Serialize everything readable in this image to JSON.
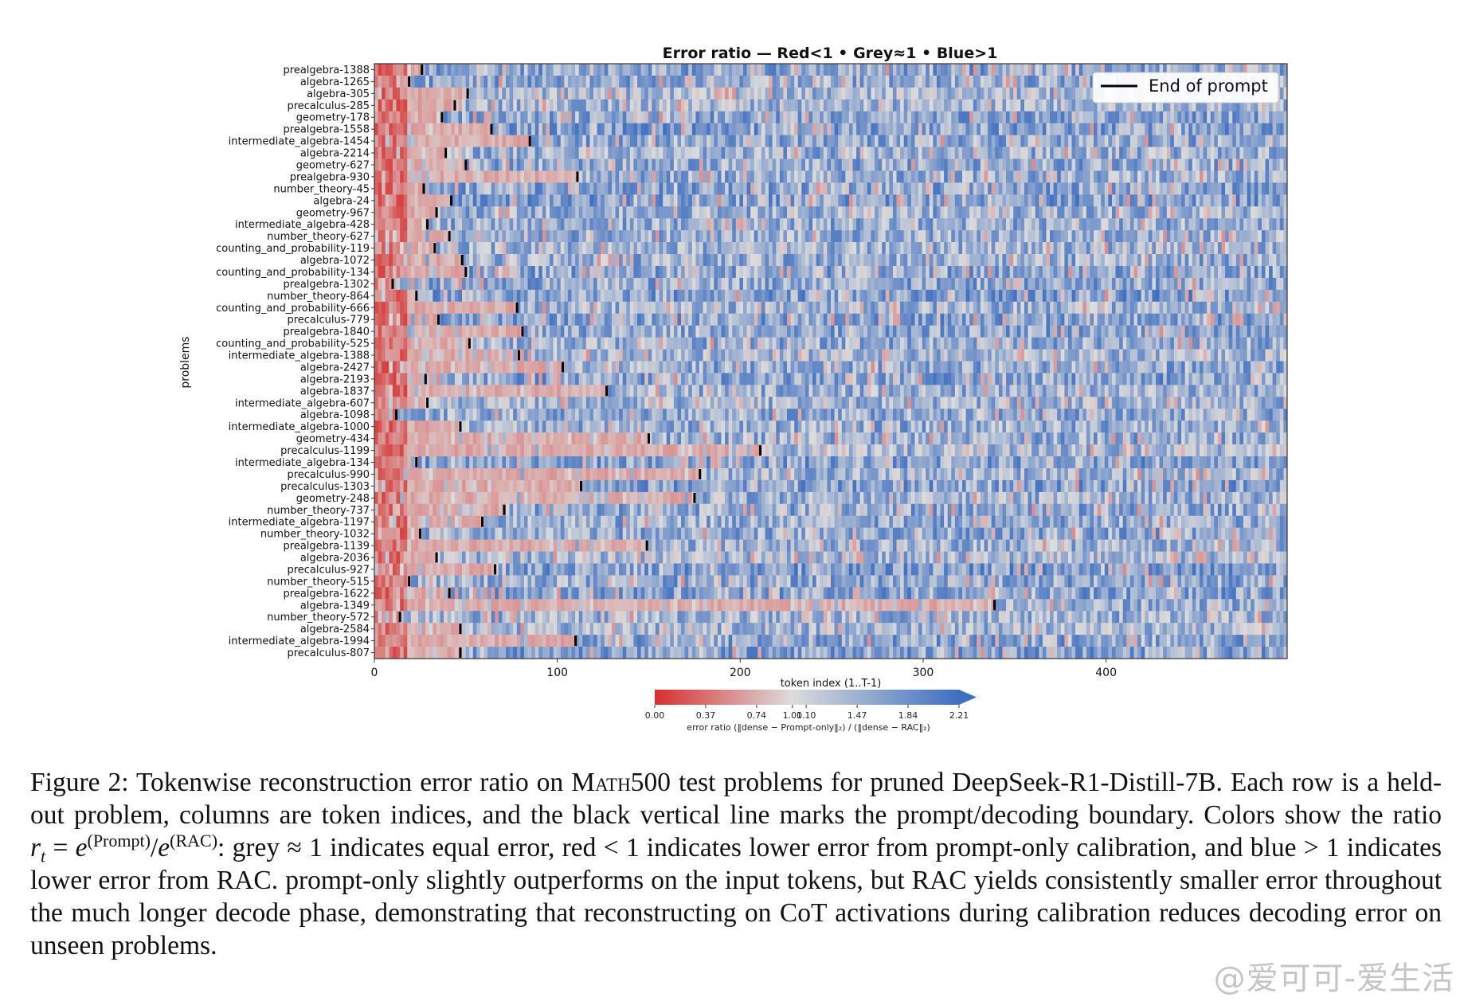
{
  "chart_data": {
    "type": "heatmap",
    "title": "Error ratio — Red<1 • Grey≈1 • Blue>1",
    "xlabel": "token index (1..T-1)",
    "ylabel": "problems",
    "xlim": [
      0,
      499
    ],
    "x_ticks": [
      0,
      100,
      200,
      300,
      400
    ],
    "legend": {
      "label": "End of prompt",
      "placement": "top-right"
    },
    "colorbar": {
      "label": "error ratio (‖dense − Prompt-only‖₂) / (‖dense − RAC‖₂)",
      "ticks": [
        "0.00",
        "0.37",
        "0.74",
        "1.00",
        "1.10",
        "1.47",
        "1.84",
        "2.21"
      ],
      "min": 0.0,
      "max": 2.21,
      "colors": {
        "low": "#d62f2f",
        "mid": "#dcdcdc",
        "high": "#3f6fc0"
      }
    },
    "rows": [
      {
        "name": "prealgebra-1388",
        "prompt_end": 26
      },
      {
        "name": "algebra-1265",
        "prompt_end": 19
      },
      {
        "name": "algebra-305",
        "prompt_end": 51
      },
      {
        "name": "precalculus-285",
        "prompt_end": 44
      },
      {
        "name": "geometry-178",
        "prompt_end": 37
      },
      {
        "name": "prealgebra-1558",
        "prompt_end": 64
      },
      {
        "name": "intermediate_algebra-1454",
        "prompt_end": 85
      },
      {
        "name": "algebra-2214",
        "prompt_end": 39
      },
      {
        "name": "geometry-627",
        "prompt_end": 50
      },
      {
        "name": "prealgebra-930",
        "prompt_end": 111
      },
      {
        "name": "number_theory-45",
        "prompt_end": 27
      },
      {
        "name": "algebra-24",
        "prompt_end": 42
      },
      {
        "name": "geometry-967",
        "prompt_end": 34
      },
      {
        "name": "intermediate_algebra-428",
        "prompt_end": 29
      },
      {
        "name": "number_theory-627",
        "prompt_end": 41
      },
      {
        "name": "counting_and_probability-119",
        "prompt_end": 33
      },
      {
        "name": "algebra-1072",
        "prompt_end": 48
      },
      {
        "name": "counting_and_probability-134",
        "prompt_end": 50
      },
      {
        "name": "prealgebra-1302",
        "prompt_end": 10
      },
      {
        "name": "number_theory-864",
        "prompt_end": 23
      },
      {
        "name": "counting_and_probability-666",
        "prompt_end": 78
      },
      {
        "name": "precalculus-779",
        "prompt_end": 35
      },
      {
        "name": "prealgebra-1840",
        "prompt_end": 81
      },
      {
        "name": "counting_and_probability-525",
        "prompt_end": 52
      },
      {
        "name": "intermediate_algebra-1388",
        "prompt_end": 79
      },
      {
        "name": "algebra-2427",
        "prompt_end": 103
      },
      {
        "name": "algebra-2193",
        "prompt_end": 28
      },
      {
        "name": "algebra-1837",
        "prompt_end": 127
      },
      {
        "name": "intermediate_algebra-607",
        "prompt_end": 29
      },
      {
        "name": "algebra-1098",
        "prompt_end": 12
      },
      {
        "name": "intermediate_algebra-1000",
        "prompt_end": 47
      },
      {
        "name": "geometry-434",
        "prompt_end": 150
      },
      {
        "name": "precalculus-1199",
        "prompt_end": 211
      },
      {
        "name": "intermediate_algebra-134",
        "prompt_end": 23
      },
      {
        "name": "precalculus-990",
        "prompt_end": 178
      },
      {
        "name": "precalculus-1303",
        "prompt_end": 113
      },
      {
        "name": "geometry-248",
        "prompt_end": 175
      },
      {
        "name": "number_theory-737",
        "prompt_end": 71
      },
      {
        "name": "intermediate_algebra-1197",
        "prompt_end": 59
      },
      {
        "name": "number_theory-1032",
        "prompt_end": 25
      },
      {
        "name": "prealgebra-1139",
        "prompt_end": 149
      },
      {
        "name": "algebra-2036",
        "prompt_end": 34
      },
      {
        "name": "precalculus-927",
        "prompt_end": 66
      },
      {
        "name": "number_theory-515",
        "prompt_end": 19
      },
      {
        "name": "prealgebra-1622",
        "prompt_end": 41
      },
      {
        "name": "algebra-1349",
        "prompt_end": 339
      },
      {
        "name": "number_theory-572",
        "prompt_end": 14
      },
      {
        "name": "algebra-2584",
        "prompt_end": 47
      },
      {
        "name": "intermediate_algebra-1994",
        "prompt_end": 110
      },
      {
        "name": "precalculus-807",
        "prompt_end": 47
      }
    ]
  },
  "caption": {
    "label": "Figure 2:",
    "text_1": "Tokenwise reconstruction error ratio on ",
    "dataset": "Math500",
    "text_2": " test problems for pruned DeepSeek-R1-Distill-7B. Each row is a held-out problem, columns are token indices, and the black vertical line marks the prompt/decoding boundary. Colors show the ratio ",
    "math_r": "r",
    "math_t": "t",
    "math_eq": " = ",
    "math_e1": "e",
    "math_sup1": "(Prompt)",
    "math_div": "/",
    "math_e2": "e",
    "math_sup2": "(RAC)",
    "text_3": ": grey ≈ 1 indicates equal error, red < 1 indicates lower error from prompt-only calibration, and blue > 1 indicates lower error from RAC. prompt-only slightly outperforms on the input tokens, but RAC yields consistently smaller error throughout the much longer decode phase, demonstrating that reconstructing on CoT activations during calibration reduces decoding error on unseen problems."
  },
  "watermark": "@爱可可-爱生活"
}
